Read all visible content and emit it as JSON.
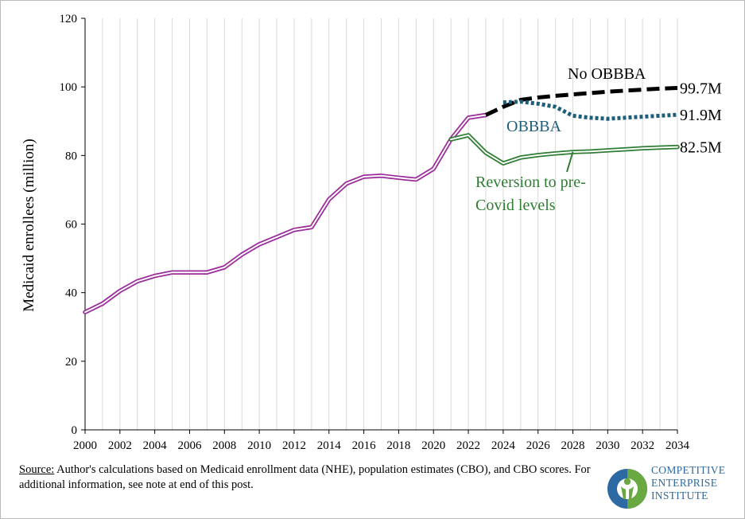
{
  "chart_data": {
    "type": "line",
    "title": "",
    "xlabel": "",
    "ylabel": "Medicaid enrollees (million)",
    "xlim": [
      2000,
      2034
    ],
    "ylim": [
      0,
      120
    ],
    "x_ticks": [
      "2000",
      "2002",
      "2004",
      "2006",
      "2008",
      "2010",
      "2012",
      "2014",
      "2016",
      "2018",
      "2020",
      "2022",
      "2024",
      "2026",
      "2028",
      "2030",
      "2032",
      "2034"
    ],
    "y_ticks": [
      "0",
      "20",
      "40",
      "60",
      "80",
      "100",
      "120"
    ],
    "grid": "vertical",
    "series": [
      {
        "key": "historical",
        "style": "double",
        "color": "#9b2b9b",
        "x": [
          2000,
          2001,
          2002,
          2003,
          2004,
          2005,
          2006,
          2007,
          2008,
          2009,
          2010,
          2011,
          2012,
          2013,
          2014,
          2015,
          2016,
          2017,
          2018,
          2019,
          2020,
          2021,
          2022,
          2023
        ],
        "y": [
          34.3,
          36.8,
          40.5,
          43.3,
          44.9,
          45.9,
          45.9,
          45.9,
          47.4,
          51.1,
          54.1,
          56.2,
          58.3,
          59.1,
          67.2,
          71.8,
          73.8,
          74.1,
          73.5,
          73.0,
          76.1,
          84.7,
          91.0,
          91.8
        ]
      },
      {
        "name": "No OBBBA",
        "key": "no_obbba",
        "style": "dashed",
        "color": "#000000",
        "x": [
          2023,
          2024,
          2025,
          2026,
          2027,
          2028,
          2029,
          2030,
          2031,
          2032,
          2033,
          2034
        ],
        "y": [
          91.8,
          94.2,
          96.2,
          96.9,
          97.4,
          97.8,
          98.2,
          98.6,
          98.9,
          99.2,
          99.5,
          99.7
        ],
        "end_label": "99.7M"
      },
      {
        "name": "OBBBA",
        "key": "obbba",
        "style": "dotted",
        "color": "#1f5e7a",
        "x": [
          2024,
          2025,
          2026,
          2027,
          2028,
          2029,
          2030,
          2031,
          2032,
          2033,
          2034
        ],
        "y": [
          95.5,
          95.7,
          95.1,
          94.2,
          91.6,
          91.0,
          90.7,
          91.0,
          91.3,
          91.6,
          91.9
        ],
        "end_label": "91.9M"
      },
      {
        "name": "Reversion to pre-Covid levels",
        "key": "reversion",
        "style": "double",
        "color": "#2e7d32",
        "x": [
          2021,
          2022,
          2023,
          2024,
          2025,
          2026,
          2027,
          2028,
          2029,
          2030,
          2031,
          2032,
          2033,
          2034
        ],
        "y": [
          84.7,
          85.9,
          80.8,
          77.7,
          79.4,
          80.1,
          80.6,
          81.0,
          81.2,
          81.5,
          81.8,
          82.1,
          82.3,
          82.5
        ],
        "end_label": "82.5M"
      }
    ],
    "annotations": [
      {
        "key": "no_obbba",
        "lines": [
          "No OBBBA"
        ],
        "color": "#000000"
      },
      {
        "key": "obbba",
        "lines": [
          "OBBBA"
        ],
        "color": "#1f5e7a"
      },
      {
        "key": "reversion",
        "lines": [
          "Reversion to pre-",
          "Covid levels"
        ],
        "color": "#2e7d32"
      }
    ]
  },
  "footer": {
    "source_label": "Source:",
    "source_text": " Author's calculations based on Medicaid enrollment data (NHE), population estimates (CBO), and CBO scores. For additional information, see note at end of this post."
  },
  "logo": {
    "line1": "COMPETITIVE",
    "line2": "ENTERPRISE",
    "line3": "INSTITUTE",
    "colors": {
      "blue": "#2d6aa3",
      "green": "#6aa842"
    }
  }
}
